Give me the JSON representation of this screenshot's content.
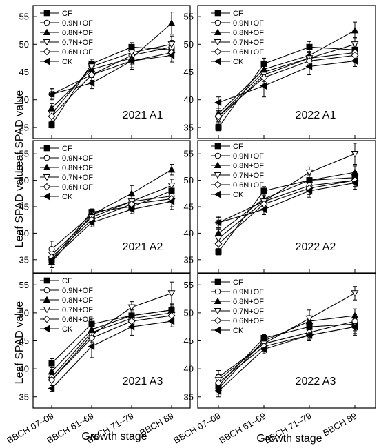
{
  "figure": {
    "ylabel": "Leaf SPAD value",
    "xlabel": "Growth stage",
    "categories": [
      "BBCH 07–09",
      "BBCH 61–69",
      "BBCH 71–79",
      "BBCH 89"
    ]
  },
  "legend": {
    "entries": [
      "CF",
      "0.9N+OF",
      "0.8N+OF",
      "0.7N+OF",
      "0.6N+OF",
      "CK"
    ],
    "markers": [
      "filled-square",
      "open-circle",
      "filled-triangle-up",
      "open-triangle-down",
      "open-diamond",
      "filled-triangle-left"
    ]
  },
  "chart_data": [
    {
      "type": "line",
      "panel": "2021 A1",
      "categories": [
        "BBCH 07–09",
        "BBCH 61–69",
        "BBCH 71–79",
        "BBCH 89"
      ],
      "ylim": [
        33,
        57
      ],
      "yticks": [
        35,
        40,
        45,
        50,
        55
      ],
      "series": [
        {
          "name": "CF",
          "values": [
            35.5,
            46.5,
            49.5,
            49.0
          ],
          "err": [
            0.6,
            0.8,
            0.8,
            1.2
          ]
        },
        {
          "name": "0.9N+OF",
          "values": [
            41.0,
            44.5,
            48.0,
            49.5
          ],
          "err": [
            1.0,
            1.5,
            1.2,
            1.2
          ]
        },
        {
          "name": "0.8N+OF",
          "values": [
            38.5,
            45.5,
            47.5,
            53.8
          ],
          "err": [
            0.8,
            1.2,
            1.2,
            2.0
          ]
        },
        {
          "name": "0.7N+OF",
          "values": [
            37.5,
            46.0,
            48.5,
            50.0
          ],
          "err": [
            0.8,
            1.0,
            1.2,
            1.5
          ]
        },
        {
          "name": "0.6N+OF",
          "values": [
            37.0,
            44.5,
            47.0,
            48.5
          ],
          "err": [
            0.8,
            1.0,
            1.5,
            1.5
          ]
        },
        {
          "name": "CK",
          "values": [
            41.0,
            43.0,
            47.0,
            48.0
          ],
          "err": [
            0.8,
            1.0,
            1.2,
            1.2
          ]
        }
      ]
    },
    {
      "type": "line",
      "panel": "2022 A1",
      "categories": [
        "BBCH 07–09",
        "BBCH 61–69",
        "BBCH 71–79",
        "BBCH 89"
      ],
      "ylim": [
        33,
        57
      ],
      "yticks": [
        35,
        40,
        45,
        50,
        55
      ],
      "series": [
        {
          "name": "CF",
          "values": [
            35.0,
            46.5,
            49.5,
            49.0
          ],
          "err": [
            0.6,
            1.0,
            1.0,
            1.2
          ]
        },
        {
          "name": "0.9N+OF",
          "values": [
            37.0,
            45.0,
            47.5,
            48.5
          ],
          "err": [
            1.0,
            1.2,
            1.2,
            1.2
          ]
        },
        {
          "name": "0.8N+OF",
          "values": [
            37.5,
            45.5,
            48.0,
            52.5
          ],
          "err": [
            1.0,
            1.2,
            1.2,
            1.5
          ]
        },
        {
          "name": "0.7N+OF",
          "values": [
            36.5,
            44.5,
            47.5,
            50.0
          ],
          "err": [
            1.0,
            1.2,
            1.2,
            1.2
          ]
        },
        {
          "name": "0.6N+OF",
          "values": [
            37.0,
            44.0,
            47.0,
            48.0
          ],
          "err": [
            1.0,
            1.2,
            1.2,
            1.2
          ]
        },
        {
          "name": "CK",
          "values": [
            39.5,
            42.5,
            46.0,
            47.0
          ],
          "err": [
            1.0,
            2.0,
            1.5,
            1.0
          ]
        }
      ]
    },
    {
      "type": "line",
      "panel": "2021 A2",
      "categories": [
        "BBCH 07–09",
        "BBCH 61–69",
        "BBCH 71–79",
        "BBCH 89"
      ],
      "ylim": [
        32.5,
        57.5
      ],
      "yticks": [
        35,
        40,
        45,
        50,
        55
      ],
      "series": [
        {
          "name": "CF",
          "values": [
            35.0,
            44.0,
            45.0,
            48.0
          ],
          "err": [
            1.0,
            0.6,
            0.8,
            1.2
          ]
        },
        {
          "name": "0.9N+OF",
          "values": [
            37.0,
            43.5,
            46.0,
            47.0
          ],
          "err": [
            1.5,
            0.8,
            1.0,
            1.2
          ]
        },
        {
          "name": "0.8N+OF",
          "values": [
            34.5,
            43.5,
            47.5,
            52.0
          ],
          "err": [
            1.0,
            0.8,
            1.5,
            1.0
          ]
        },
        {
          "name": "0.7N+OF",
          "values": [
            36.0,
            43.0,
            46.0,
            49.0
          ],
          "err": [
            1.0,
            0.8,
            1.0,
            1.2
          ]
        },
        {
          "name": "0.6N+OF",
          "values": [
            35.5,
            42.5,
            45.5,
            46.5
          ],
          "err": [
            1.0,
            0.8,
            1.0,
            1.5
          ]
        },
        {
          "name": "CK",
          "values": [
            35.0,
            42.0,
            44.5,
            46.0
          ],
          "err": [
            1.5,
            0.8,
            0.8,
            1.5
          ]
        }
      ]
    },
    {
      "type": "line",
      "panel": "2022 A2",
      "categories": [
        "BBCH 07–09",
        "BBCH 61–69",
        "BBCH 71–79",
        "BBCH 89"
      ],
      "ylim": [
        32.5,
        57.5
      ],
      "yticks": [
        35,
        40,
        45,
        50,
        55
      ],
      "series": [
        {
          "name": "CF",
          "values": [
            36.5,
            48.0,
            50.0,
            50.5
          ],
          "err": [
            0.6,
            0.8,
            1.0,
            1.2
          ]
        },
        {
          "name": "0.9N+OF",
          "values": [
            42.0,
            46.0,
            49.0,
            50.0
          ],
          "err": [
            1.2,
            1.0,
            1.2,
            1.2
          ]
        },
        {
          "name": "0.8N+OF",
          "values": [
            40.0,
            46.5,
            50.0,
            51.5
          ],
          "err": [
            1.0,
            1.0,
            1.2,
            1.2
          ]
        },
        {
          "name": "0.7N+OF",
          "values": [
            39.0,
            46.0,
            51.5,
            55.0
          ],
          "err": [
            1.0,
            1.0,
            1.0,
            2.0
          ]
        },
        {
          "name": "0.6N+OF",
          "values": [
            38.0,
            45.5,
            48.5,
            50.0
          ],
          "err": [
            1.0,
            1.0,
            1.2,
            1.2
          ]
        },
        {
          "name": "CK",
          "values": [
            42.0,
            44.5,
            48.0,
            49.5
          ],
          "err": [
            1.0,
            1.0,
            1.2,
            1.2
          ]
        }
      ]
    },
    {
      "type": "line",
      "panel": "2021 A3",
      "categories": [
        "BBCH 07–09",
        "BBCH 61–69",
        "BBCH 71–79",
        "BBCH 89"
      ],
      "ylim": [
        33,
        57
      ],
      "yticks": [
        35,
        40,
        45,
        50,
        55
      ],
      "series": [
        {
          "name": "CF",
          "values": [
            41.0,
            48.0,
            49.5,
            50.5
          ],
          "err": [
            0.8,
            1.0,
            1.0,
            1.2
          ]
        },
        {
          "name": "0.9N+OF",
          "values": [
            38.5,
            46.5,
            49.0,
            50.0
          ],
          "err": [
            1.0,
            1.2,
            1.2,
            1.2
          ]
        },
        {
          "name": "0.8N+OF",
          "values": [
            39.5,
            47.0,
            49.5,
            50.5
          ],
          "err": [
            0.8,
            1.0,
            1.0,
            1.2
          ]
        },
        {
          "name": "0.7N+OF",
          "values": [
            38.0,
            46.0,
            51.0,
            53.5
          ],
          "err": [
            1.0,
            1.2,
            1.0,
            2.0
          ]
        },
        {
          "name": "0.6N+OF",
          "values": [
            38.0,
            45.5,
            48.5,
            49.5
          ],
          "err": [
            1.0,
            1.2,
            1.2,
            1.2
          ]
        },
        {
          "name": "CK",
          "values": [
            36.5,
            44.0,
            47.5,
            48.5
          ],
          "err": [
            0.6,
            2.0,
            1.5,
            1.0
          ]
        }
      ]
    },
    {
      "type": "line",
      "panel": "2022 A3",
      "categories": [
        "BBCH 07–09",
        "BBCH 61–69",
        "BBCH 71–79",
        "BBCH 89"
      ],
      "ylim": [
        33,
        57
      ],
      "yticks": [
        35,
        40,
        45,
        50,
        55
      ],
      "series": [
        {
          "name": "CF",
          "values": [
            37.0,
            45.5,
            47.5,
            48.0
          ],
          "err": [
            1.0,
            0.6,
            1.0,
            1.2
          ]
        },
        {
          "name": "0.9N+OF",
          "values": [
            38.5,
            44.5,
            46.5,
            48.5
          ],
          "err": [
            1.2,
            0.8,
            1.2,
            1.2
          ]
        },
        {
          "name": "0.8N+OF",
          "values": [
            36.5,
            45.0,
            48.5,
            49.5
          ],
          "err": [
            1.0,
            0.8,
            1.0,
            1.2
          ]
        },
        {
          "name": "0.7N+OF",
          "values": [
            38.0,
            44.5,
            49.0,
            53.5
          ],
          "err": [
            1.0,
            0.8,
            1.5,
            1.2
          ]
        },
        {
          "name": "0.6N+OF",
          "values": [
            37.5,
            44.0,
            46.0,
            47.5
          ],
          "err": [
            1.0,
            0.8,
            1.0,
            1.5
          ]
        },
        {
          "name": "CK",
          "values": [
            36.0,
            43.5,
            46.0,
            47.5
          ],
          "err": [
            1.0,
            0.8,
            1.0,
            1.2
          ]
        }
      ]
    }
  ]
}
